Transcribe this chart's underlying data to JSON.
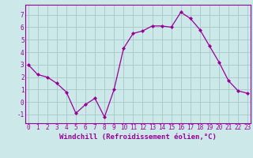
{
  "x": [
    0,
    1,
    2,
    3,
    4,
    5,
    6,
    7,
    8,
    9,
    10,
    11,
    12,
    13,
    14,
    15,
    16,
    17,
    18,
    19,
    20,
    21,
    22,
    23
  ],
  "y": [
    3.0,
    2.2,
    2.0,
    1.5,
    0.8,
    -0.9,
    -0.2,
    0.3,
    -1.2,
    1.0,
    4.3,
    5.5,
    5.7,
    6.1,
    6.1,
    6.0,
    7.2,
    6.7,
    5.8,
    4.5,
    3.2,
    1.7,
    0.9,
    0.7
  ],
  "line_color": "#990099",
  "marker": "D",
  "markersize": 2,
  "linewidth": 0.9,
  "background_color": "#cce8e8",
  "grid_color": "#aacccc",
  "xlabel": "Windchill (Refroidissement éolien,°C)",
  "xlabel_fontsize": 6.5,
  "tick_color": "#990099",
  "tick_fontsize": 5.5,
  "yticks": [
    -1,
    0,
    1,
    2,
    3,
    4,
    5,
    6,
    7
  ],
  "ylim": [
    -1.7,
    7.8
  ],
  "xlim": [
    -0.3,
    23.3
  ],
  "xticks": [
    0,
    1,
    2,
    3,
    4,
    5,
    6,
    7,
    8,
    9,
    10,
    11,
    12,
    13,
    14,
    15,
    16,
    17,
    18,
    19,
    20,
    21,
    22,
    23
  ]
}
